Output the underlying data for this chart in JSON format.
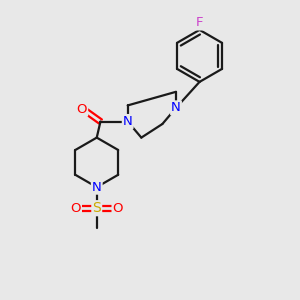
{
  "background_color": "#e8e8e8",
  "bond_color": "#1a1a1a",
  "nitrogen_color": "#0000ff",
  "oxygen_color": "#ff0000",
  "sulfur_color": "#ccaa00",
  "fluorine_color": "#cc44cc",
  "line_width": 1.6,
  "figsize": [
    3.0,
    3.0
  ],
  "dpi": 100,
  "xlim": [
    0,
    10
  ],
  "ylim": [
    0,
    12
  ]
}
